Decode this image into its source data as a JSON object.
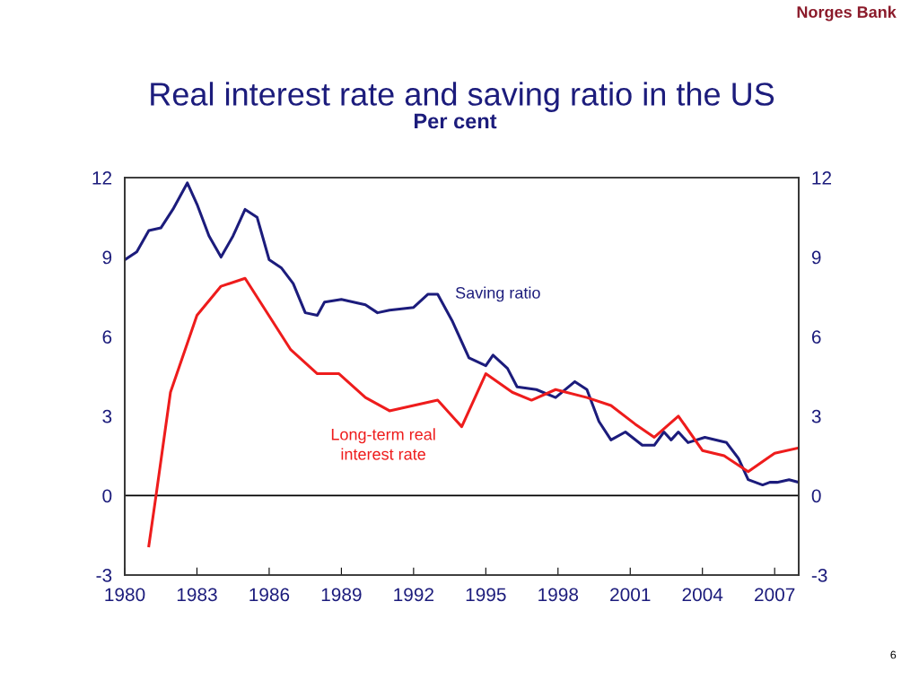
{
  "chart_data": {
    "type": "line",
    "title": "Real interest rate and saving ratio in the US",
    "subtitle": "Per cent",
    "series": [
      {
        "name": "Saving ratio",
        "color": "#1c1c7c",
        "x": [
          1980.0,
          1980.5,
          1981.0,
          1981.5,
          1982.0,
          1982.6,
          1983.0,
          1983.5,
          1984.0,
          1984.5,
          1985.0,
          1985.5,
          1986.0,
          1986.5,
          1987.0,
          1987.5,
          1988.0,
          1988.3,
          1989.0,
          1990.0,
          1990.5,
          1991.0,
          1992.0,
          1992.6,
          1993.0,
          1993.6,
          1994.3,
          1995.0,
          1995.3,
          1995.9,
          1996.3,
          1997.1,
          1997.9,
          1998.7,
          1999.2,
          1999.7,
          2000.2,
          2000.8,
          2001.5,
          2002.0,
          2002.4,
          2002.7,
          2003.0,
          2003.4,
          2004.1,
          2005.0,
          2005.5,
          2005.9,
          2006.5,
          2006.8,
          2007.1,
          2007.6,
          2008.0
        ],
        "values": [
          8.9,
          9.2,
          10.0,
          10.1,
          10.8,
          11.8,
          11.0,
          9.8,
          9.0,
          9.8,
          10.8,
          10.5,
          8.9,
          8.6,
          8.0,
          6.9,
          6.8,
          7.3,
          7.4,
          7.2,
          6.9,
          7.0,
          7.1,
          7.6,
          7.6,
          6.6,
          5.2,
          4.9,
          5.3,
          4.8,
          4.1,
          4.0,
          3.7,
          4.3,
          4.0,
          2.8,
          2.1,
          2.4,
          1.9,
          1.9,
          2.4,
          2.1,
          2.4,
          2.0,
          2.2,
          2.0,
          1.4,
          0.6,
          0.4,
          0.5,
          0.5,
          0.6,
          0.5
        ]
      },
      {
        "name": "Long-term real\ninterest rate",
        "color": "#ee1c1c",
        "x": [
          1981.0,
          1981.3,
          1981.9,
          1983.0,
          1984.0,
          1985.0,
          1986.9,
          1988.0,
          1988.9,
          1990.0,
          1991.0,
          1993.0,
          1994.0,
          1995.0,
          1996.1,
          1996.9,
          1997.9,
          1999.2,
          2000.2,
          2001.2,
          2002.0,
          2003.0,
          2004.0,
          2004.9,
          2005.9,
          2007.0,
          2008.0
        ],
        "values": [
          -1.9,
          0.0,
          3.9,
          6.8,
          7.9,
          8.2,
          5.5,
          4.6,
          4.6,
          3.7,
          3.2,
          3.6,
          2.6,
          4.6,
          3.9,
          3.6,
          4.0,
          3.7,
          3.4,
          2.7,
          2.2,
          3.0,
          1.7,
          1.5,
          0.9,
          1.6,
          1.8
        ]
      }
    ],
    "xlim": [
      1980,
      2008
    ],
    "xticks": [
      1980,
      1983,
      1986,
      1989,
      1992,
      1995,
      1998,
      2001,
      2004,
      2007
    ],
    "ylim": [
      -3,
      12
    ],
    "yticks": [
      -3,
      0,
      3,
      6,
      9,
      12
    ],
    "y2lim": [
      -3,
      12
    ],
    "y2ticks": [
      -3,
      0,
      3,
      6,
      9,
      12
    ],
    "ref_lines": [
      {
        "axis": "y",
        "value": 0,
        "color": "#000000"
      }
    ],
    "grid": false,
    "legend": false,
    "annotations": [
      "Norges Bank",
      "6"
    ]
  }
}
